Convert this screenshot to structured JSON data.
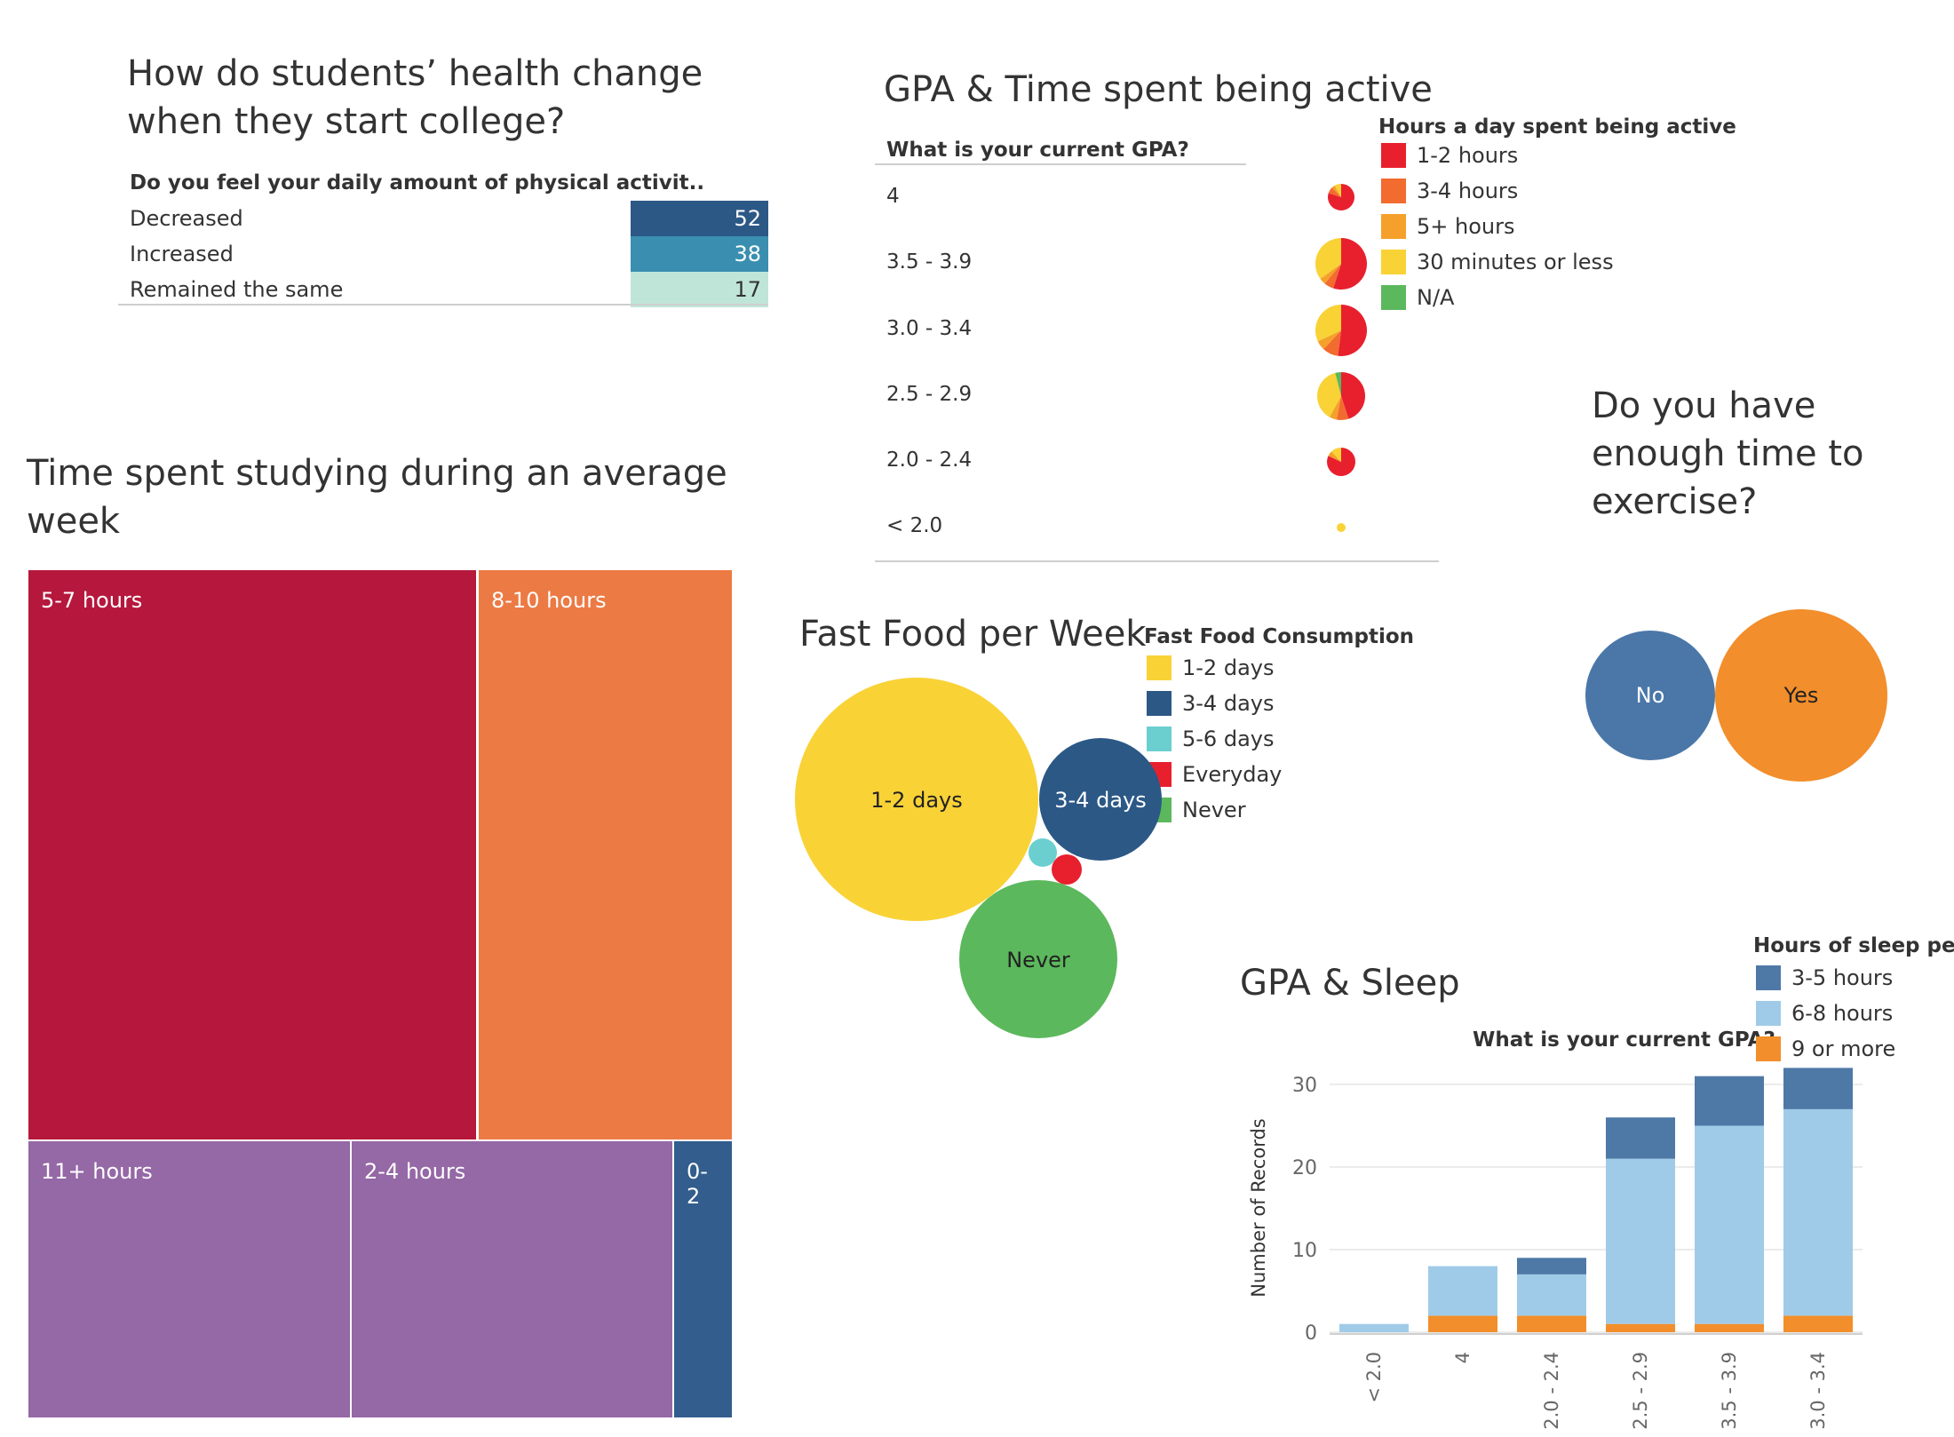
{
  "health": {
    "title": "How do students’ health change when they start college?",
    "column_header": "Do you feel your daily amount of physical activit..",
    "rows": [
      {
        "label": "Decreased",
        "value": "52",
        "color": "#2c5886"
      },
      {
        "label": "Increased",
        "value": "38",
        "color": "#3a8fb0"
      },
      {
        "label": "Remained the same",
        "value": "17",
        "color": "#bfe5d9"
      }
    ]
  },
  "active": {
    "title": "GPA & Time spent being active",
    "column_header": "What is your current GPA?",
    "legend_title": "Hours a day spent being active",
    "legend": [
      {
        "label": "1-2 hours",
        "color": "#e8202e"
      },
      {
        "label": "3-4 hours",
        "color": "#f26b2f"
      },
      {
        "label": "5+ hours",
        "color": "#f5a02a"
      },
      {
        "label": "30 minutes or less",
        "color": "#f9d236"
      },
      {
        "label": "N/A",
        "color": "#5cb85c"
      }
    ],
    "rows": [
      "4",
      "3.5 - 3.9",
      "3.0 - 3.4",
      "2.5 - 2.9",
      "2.0 - 2.4",
      "< 2.0"
    ]
  },
  "exercise": {
    "title": "Do you have enough time to exercise?",
    "no_label": "No",
    "yes_label": "Yes",
    "no_color": "#4a77a8",
    "yes_color": "#f28e2b"
  },
  "studying": {
    "title": "Time spent studying during an average week",
    "labels": {
      "a": "5-7 hours",
      "b": "8-10 hours",
      "c": "11+ hours",
      "d": "2-4 hours",
      "e": "0-2"
    }
  },
  "fastfood": {
    "title": "Fast Food per Week",
    "legend_title": "Fast Food Consumption",
    "legend": [
      {
        "label": "1-2 days",
        "color": "#f9d236"
      },
      {
        "label": "3-4 days",
        "color": "#2c5886"
      },
      {
        "label": "5-6 days",
        "color": "#6bcfcf"
      },
      {
        "label": "Everyday",
        "color": "#e8202e"
      },
      {
        "label": "Never",
        "color": "#5cb85c"
      }
    ],
    "bubble_labels": {
      "one_two": "1-2 days",
      "three_four": "3-4 days",
      "never": "Never"
    }
  },
  "chart_data": {
    "type": "bar",
    "title": "GPA & Sleep",
    "subtitle": "What is your current GPA?",
    "xlabel": "",
    "ylabel": "Number of Records",
    "ylim": [
      0,
      32
    ],
    "yticks": [
      0,
      10,
      20,
      30
    ],
    "categories": [
      "< 2.0",
      "4",
      "2.0 - 2.4",
      "2.5 - 2.9",
      "3.5 - 3.9",
      "3.0 - 3.4"
    ],
    "legend_title": "Hours of sleep per ni",
    "series": [
      {
        "name": "9 or more",
        "color": "#f28e2b",
        "values": [
          0,
          2,
          2,
          1,
          1,
          2
        ]
      },
      {
        "name": "6-8 hours",
        "color": "#a0cbe8",
        "values": [
          1,
          6,
          5,
          20,
          24,
          25
        ]
      },
      {
        "name": "3-5 hours",
        "color": "#4e79a7",
        "values": [
          0,
          0,
          2,
          5,
          6,
          5
        ]
      }
    ],
    "legend_order": [
      "3-5 hours",
      "6-8 hours",
      "9 or more"
    ]
  }
}
